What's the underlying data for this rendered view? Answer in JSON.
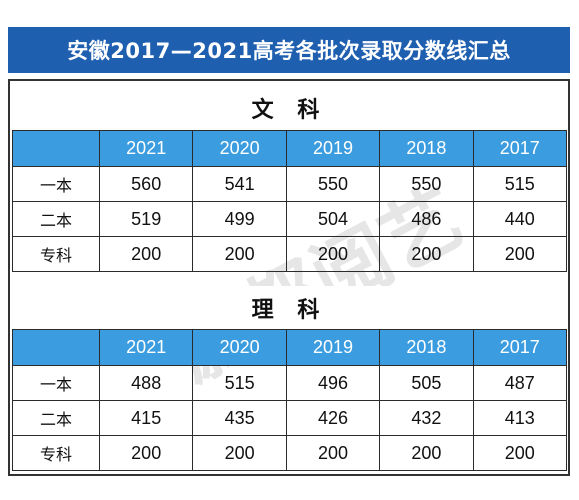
{
  "title": "安徽2017—2021高考各批次录取分数线汇总",
  "watermark": "蔚都阅艺",
  "sections": [
    {
      "name": "文 科",
      "headers": [
        "",
        "2021",
        "2020",
        "2019",
        "2018",
        "2017"
      ],
      "rows": [
        {
          "label": "一本",
          "values": [
            "560",
            "541",
            "550",
            "550",
            "515"
          ]
        },
        {
          "label": "二本",
          "values": [
            "519",
            "499",
            "504",
            "486",
            "440"
          ]
        },
        {
          "label": "专科",
          "values": [
            "200",
            "200",
            "200",
            "200",
            "200"
          ]
        }
      ]
    },
    {
      "name": "理 科",
      "headers": [
        "",
        "2021",
        "2020",
        "2019",
        "2018",
        "2017"
      ],
      "rows": [
        {
          "label": "一本",
          "values": [
            "488",
            "515",
            "496",
            "505",
            "487"
          ]
        },
        {
          "label": "二本",
          "values": [
            "415",
            "435",
            "426",
            "432",
            "413"
          ]
        },
        {
          "label": "专科",
          "values": [
            "200",
            "200",
            "200",
            "200",
            "200"
          ]
        }
      ]
    }
  ],
  "colors": {
    "title_bg": "#1f5fb0",
    "header_bg": "#3b9de0",
    "header_text": "#ffffff"
  }
}
